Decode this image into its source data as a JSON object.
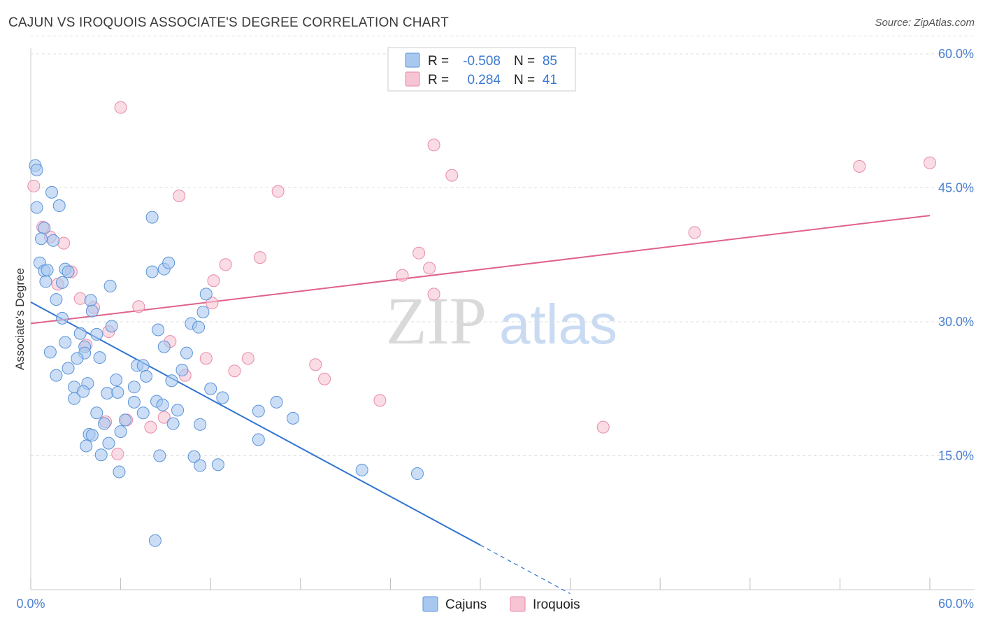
{
  "header": {
    "title": "CAJUN VS IROQUOIS ASSOCIATE'S DEGREE CORRELATION CHART",
    "source": "Source: ZipAtlas.com"
  },
  "watermark": {
    "zip": "ZIP",
    "atlas": "atlas"
  },
  "colors": {
    "cajun_fill": "#a9c8f0",
    "cajun_stroke": "#5b93d8",
    "cajun_line": "#2f74d0",
    "iroquois_fill": "#f6c4d3",
    "iroquois_stroke": "#e98aa8",
    "iroquois_line": "#e0628a",
    "tick_label": "#4a7fd0",
    "grid": "#dddddd"
  },
  "legend": {
    "r_label": "R =",
    "n_label": "N =",
    "cajun_r": "-0.508",
    "cajun_n": "85",
    "iroquois_r": "0.284",
    "iroquois_n": "41"
  },
  "chart_data": {
    "type": "scatter",
    "title": "CAJUN VS IROQUOIS ASSOCIATE'S DEGREE CORRELATION CHART",
    "xlabel": "",
    "ylabel": "Associate's Degree",
    "xlim": [
      0,
      60
    ],
    "ylim": [
      0,
      62
    ],
    "x_tick_labels": [
      "0.0%",
      "60.0%"
    ],
    "y_ticks": [
      15,
      30,
      45,
      60
    ],
    "y_tick_labels": [
      "15.0%",
      "30.0%",
      "45.0%",
      "60.0%"
    ],
    "grid": "horizontal dashed",
    "legend_placement": "top-center",
    "series": [
      {
        "name": "Cajuns",
        "trend": {
          "x0": 0,
          "y0": 32.2,
          "x1": 30,
          "y1": 5.0,
          "dashed_to_x": 36
        },
        "points": [
          [
            0.3,
            47.5
          ],
          [
            0.4,
            47.0
          ],
          [
            0.4,
            42.8
          ],
          [
            1.4,
            44.5
          ],
          [
            1.9,
            43.0
          ],
          [
            0.9,
            40.5
          ],
          [
            0.7,
            39.3
          ],
          [
            1.5,
            39.1
          ],
          [
            0.6,
            36.6
          ],
          [
            0.9,
            35.7
          ],
          [
            1.1,
            35.8
          ],
          [
            2.3,
            35.9
          ],
          [
            2.5,
            35.6
          ],
          [
            1.0,
            34.5
          ],
          [
            2.1,
            34.4
          ],
          [
            8.1,
            41.7
          ],
          [
            8.1,
            35.6
          ],
          [
            8.9,
            35.9
          ],
          [
            9.2,
            36.6
          ],
          [
            5.3,
            34.0
          ],
          [
            1.7,
            32.5
          ],
          [
            4.0,
            32.4
          ],
          [
            11.7,
            33.1
          ],
          [
            2.1,
            30.4
          ],
          [
            4.1,
            31.2
          ],
          [
            11.5,
            31.1
          ],
          [
            3.3,
            28.7
          ],
          [
            10.7,
            29.8
          ],
          [
            11.2,
            29.4
          ],
          [
            5.4,
            29.5
          ],
          [
            8.5,
            29.1
          ],
          [
            2.3,
            27.7
          ],
          [
            1.3,
            26.6
          ],
          [
            3.6,
            27.2
          ],
          [
            3.6,
            26.5
          ],
          [
            3.1,
            25.9
          ],
          [
            4.6,
            26.0
          ],
          [
            8.9,
            27.2
          ],
          [
            10.4,
            26.5
          ],
          [
            2.5,
            24.8
          ],
          [
            1.7,
            24.0
          ],
          [
            7.1,
            25.1
          ],
          [
            7.5,
            25.1
          ],
          [
            10.1,
            24.6
          ],
          [
            2.9,
            22.7
          ],
          [
            5.7,
            23.5
          ],
          [
            6.9,
            22.7
          ],
          [
            7.7,
            23.9
          ],
          [
            9.4,
            23.4
          ],
          [
            3.8,
            23.1
          ],
          [
            3.5,
            22.2
          ],
          [
            2.9,
            21.4
          ],
          [
            5.1,
            22.0
          ],
          [
            5.8,
            22.1
          ],
          [
            12.8,
            21.5
          ],
          [
            16.4,
            21.0
          ],
          [
            8.4,
            21.1
          ],
          [
            8.8,
            20.7
          ],
          [
            4.4,
            19.8
          ],
          [
            7.5,
            19.8
          ],
          [
            9.8,
            20.1
          ],
          [
            15.2,
            20.0
          ],
          [
            17.5,
            19.2
          ],
          [
            4.9,
            18.6
          ],
          [
            6.3,
            19.0
          ],
          [
            9.5,
            18.6
          ],
          [
            11.3,
            18.5
          ],
          [
            6.0,
            17.7
          ],
          [
            3.9,
            17.4
          ],
          [
            4.1,
            17.3
          ],
          [
            15.2,
            16.8
          ],
          [
            3.7,
            16.1
          ],
          [
            5.2,
            16.4
          ],
          [
            4.7,
            15.1
          ],
          [
            8.6,
            15.0
          ],
          [
            10.9,
            14.9
          ],
          [
            12.5,
            14.0
          ],
          [
            11.3,
            13.9
          ],
          [
            5.9,
            13.2
          ],
          [
            22.1,
            13.4
          ],
          [
            25.8,
            13.0
          ],
          [
            8.3,
            5.5
          ],
          [
            4.4,
            28.6
          ],
          [
            6.9,
            21.0
          ],
          [
            12.0,
            22.5
          ]
        ]
      },
      {
        "name": "Iroquois",
        "trend": {
          "x0": 0,
          "y0": 29.8,
          "x1": 60,
          "y1": 41.9
        },
        "points": [
          [
            0.2,
            45.2
          ],
          [
            6.0,
            54.0
          ],
          [
            26.9,
            49.8
          ],
          [
            28.1,
            46.4
          ],
          [
            55.3,
            47.4
          ],
          [
            60.0,
            47.8
          ],
          [
            9.9,
            44.1
          ],
          [
            16.5,
            44.6
          ],
          [
            44.3,
            40.0
          ],
          [
            0.8,
            40.6
          ],
          [
            2.2,
            38.8
          ],
          [
            1.3,
            39.5
          ],
          [
            15.3,
            37.2
          ],
          [
            13.0,
            36.4
          ],
          [
            25.9,
            37.7
          ],
          [
            26.6,
            36.0
          ],
          [
            2.7,
            35.6
          ],
          [
            24.8,
            35.2
          ],
          [
            12.2,
            34.6
          ],
          [
            1.8,
            34.2
          ],
          [
            3.3,
            32.6
          ],
          [
            4.2,
            31.6
          ],
          [
            7.2,
            31.7
          ],
          [
            12.1,
            32.1
          ],
          [
            26.9,
            33.1
          ],
          [
            5.2,
            28.9
          ],
          [
            9.3,
            27.8
          ],
          [
            3.7,
            27.4
          ],
          [
            11.7,
            25.9
          ],
          [
            14.5,
            25.9
          ],
          [
            19.0,
            25.2
          ],
          [
            10.3,
            24.0
          ],
          [
            19.6,
            23.6
          ],
          [
            23.3,
            21.2
          ],
          [
            38.2,
            18.2
          ],
          [
            8.9,
            19.3
          ],
          [
            8.0,
            18.2
          ],
          [
            6.4,
            19.0
          ],
          [
            5.0,
            18.8
          ],
          [
            5.8,
            15.2
          ],
          [
            13.6,
            24.5
          ]
        ]
      }
    ]
  }
}
